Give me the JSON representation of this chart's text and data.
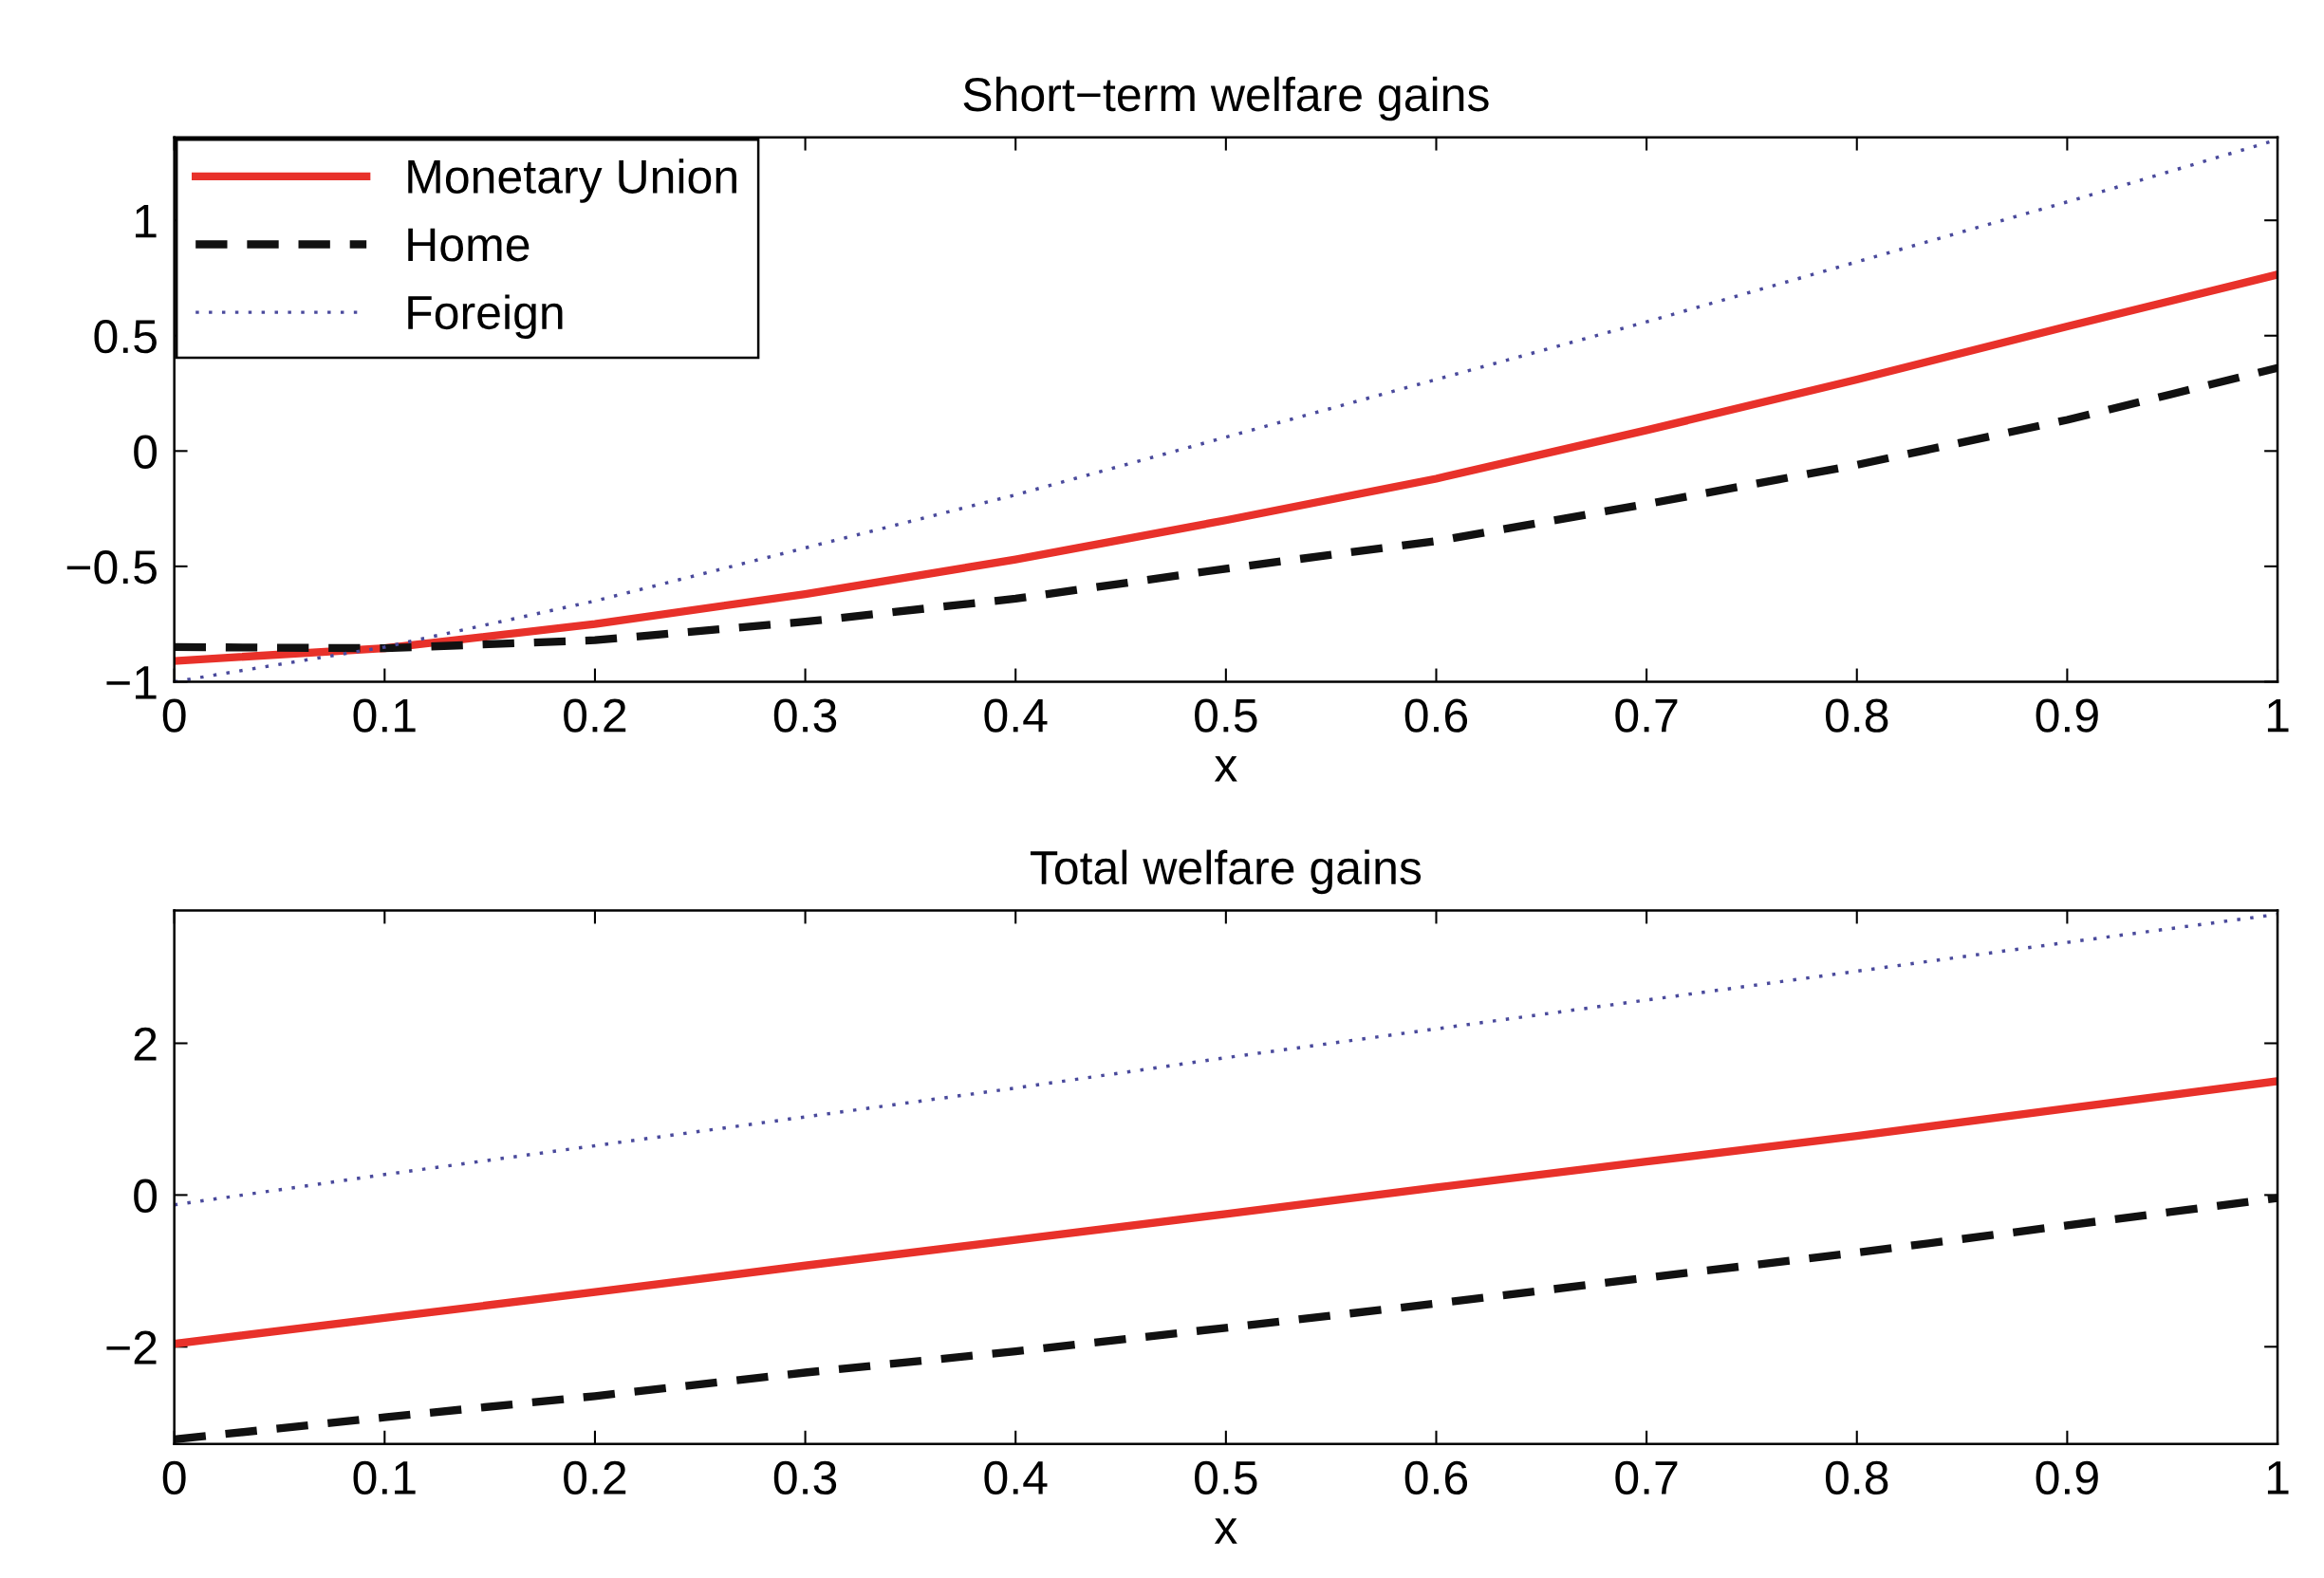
{
  "chart_data": [
    {
      "type": "line",
      "title": "Short−term welfare gains",
      "xlabel": "x",
      "x": [
        0,
        0.1,
        0.2,
        0.3,
        0.4,
        0.5,
        0.6,
        0.7,
        0.8,
        0.9,
        1
      ],
      "series": [
        {
          "name": "Monetary Union",
          "color": "#e8312a",
          "line_style": "solid",
          "values": [
            -0.91,
            -0.855,
            -0.75,
            -0.62,
            -0.47,
            -0.3,
            -0.12,
            0.09,
            0.31,
            0.54,
            0.765
          ]
        },
        {
          "name": "Home",
          "color": "#111111",
          "line_style": "dashed",
          "values": [
            -0.85,
            -0.855,
            -0.82,
            -0.74,
            -0.64,
            -0.51,
            -0.39,
            -0.23,
            -0.06,
            0.135,
            0.36
          ]
        },
        {
          "name": "Foreign",
          "color": "#4a4a9c",
          "line_style": "dotted",
          "values": [
            -1.0,
            -0.85,
            -0.65,
            -0.42,
            -0.19,
            0.06,
            0.31,
            0.56,
            0.82,
            1.08,
            1.35
          ]
        }
      ],
      "xlim": [
        0,
        1
      ],
      "ylim": [
        -1,
        1.36
      ],
      "xticks": [
        0,
        0.1,
        0.2,
        0.3,
        0.4,
        0.5,
        0.6,
        0.7,
        0.8,
        0.9,
        1
      ],
      "yticks": [
        {
          "value": -1,
          "label": "−1"
        },
        {
          "value": -0.5,
          "label": "−0.5"
        },
        0,
        0.5,
        1
      ],
      "grid": false,
      "legend": "top left"
    },
    {
      "type": "line",
      "title": "Total welfare gains",
      "xlabel": "x",
      "x": [
        0,
        0.1,
        0.2,
        0.3,
        0.4,
        0.5,
        0.6,
        0.7,
        0.8,
        0.9,
        1
      ],
      "series": [
        {
          "color": "#e8312a",
          "line_style": "solid",
          "values": [
            -1.96,
            -1.62,
            -1.28,
            -0.93,
            -0.59,
            -0.25,
            0.1,
            0.44,
            0.78,
            1.14,
            1.5
          ]
        },
        {
          "color": "#111111",
          "line_style": "dashed",
          "values": [
            -3.22,
            -2.93,
            -2.65,
            -2.34,
            -2.06,
            -1.75,
            -1.43,
            -1.09,
            -0.76,
            -0.4,
            -0.04
          ]
        },
        {
          "color": "#4a4a9c",
          "line_style": "dotted",
          "values": [
            -0.13,
            0.27,
            0.65,
            1.03,
            1.41,
            1.81,
            2.19,
            2.57,
            2.95,
            3.33,
            3.7
          ]
        }
      ],
      "xlim": [
        0,
        1
      ],
      "ylim": [
        -3.28,
        3.75
      ],
      "xticks": [
        0,
        0.1,
        0.2,
        0.3,
        0.4,
        0.5,
        0.6,
        0.7,
        0.8,
        0.9,
        1
      ],
      "yticks": [
        {
          "value": -2,
          "label": "−2"
        },
        0,
        2
      ],
      "grid": false
    }
  ]
}
